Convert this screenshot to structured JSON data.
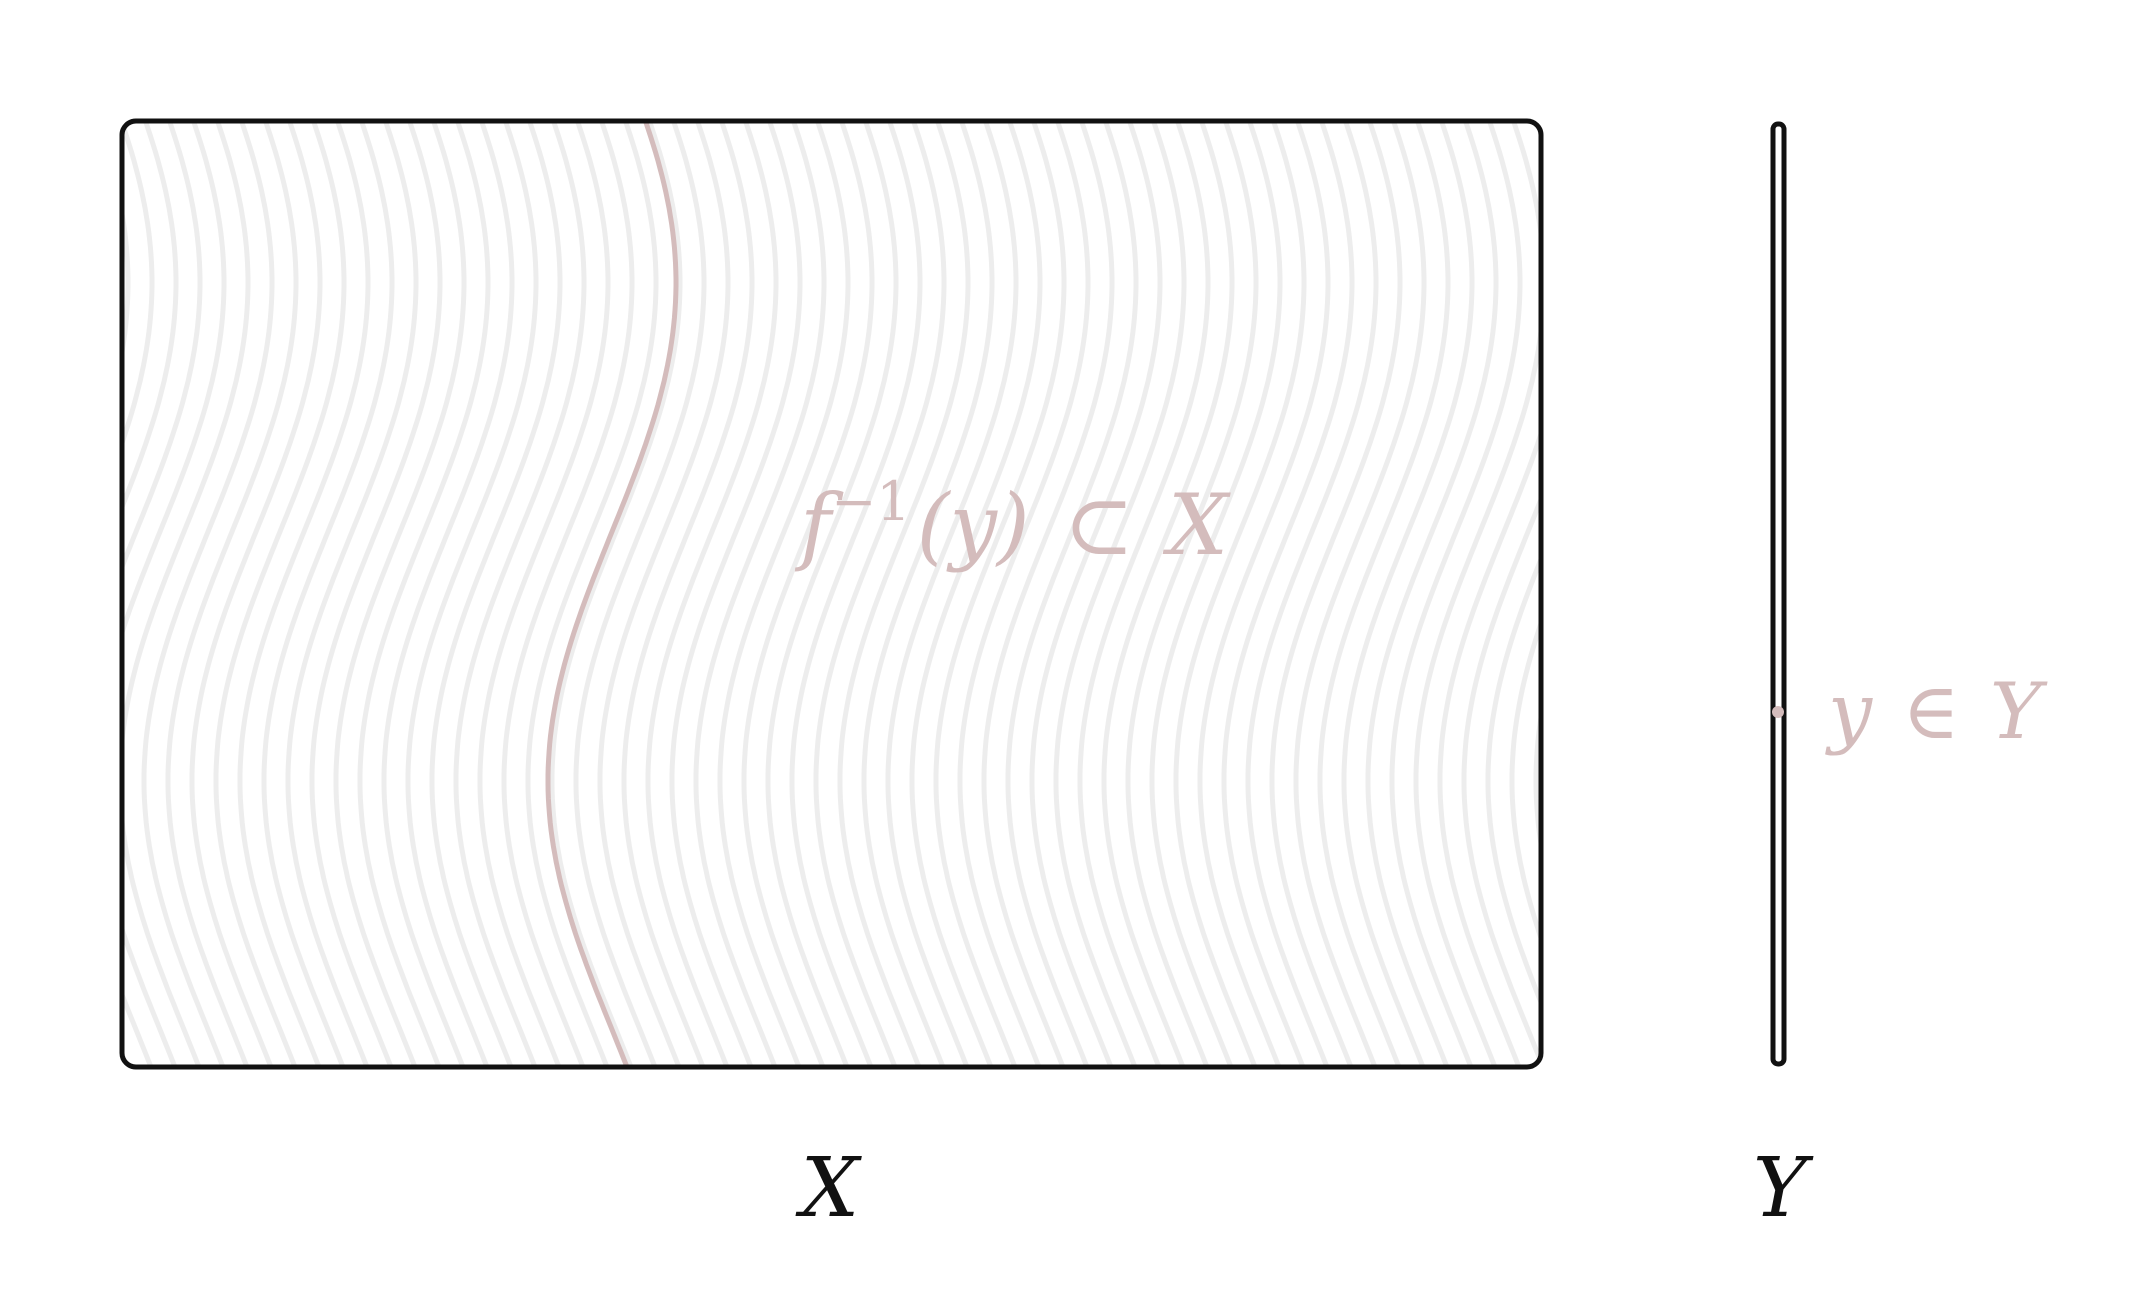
{
  "space_x": {
    "label": "X"
  },
  "space_y": {
    "label": "Y"
  },
  "fiber": {
    "label_f": "f",
    "label_exp": "−1",
    "label_arg": "(y)",
    "label_subset": "⊂",
    "label_space": "X"
  },
  "point": {
    "label_y": "y",
    "label_in": "∈",
    "label_space": "Y"
  },
  "colors": {
    "frame": "#111111",
    "fibers": "#ededed",
    "accent": "#d4bcbc"
  }
}
